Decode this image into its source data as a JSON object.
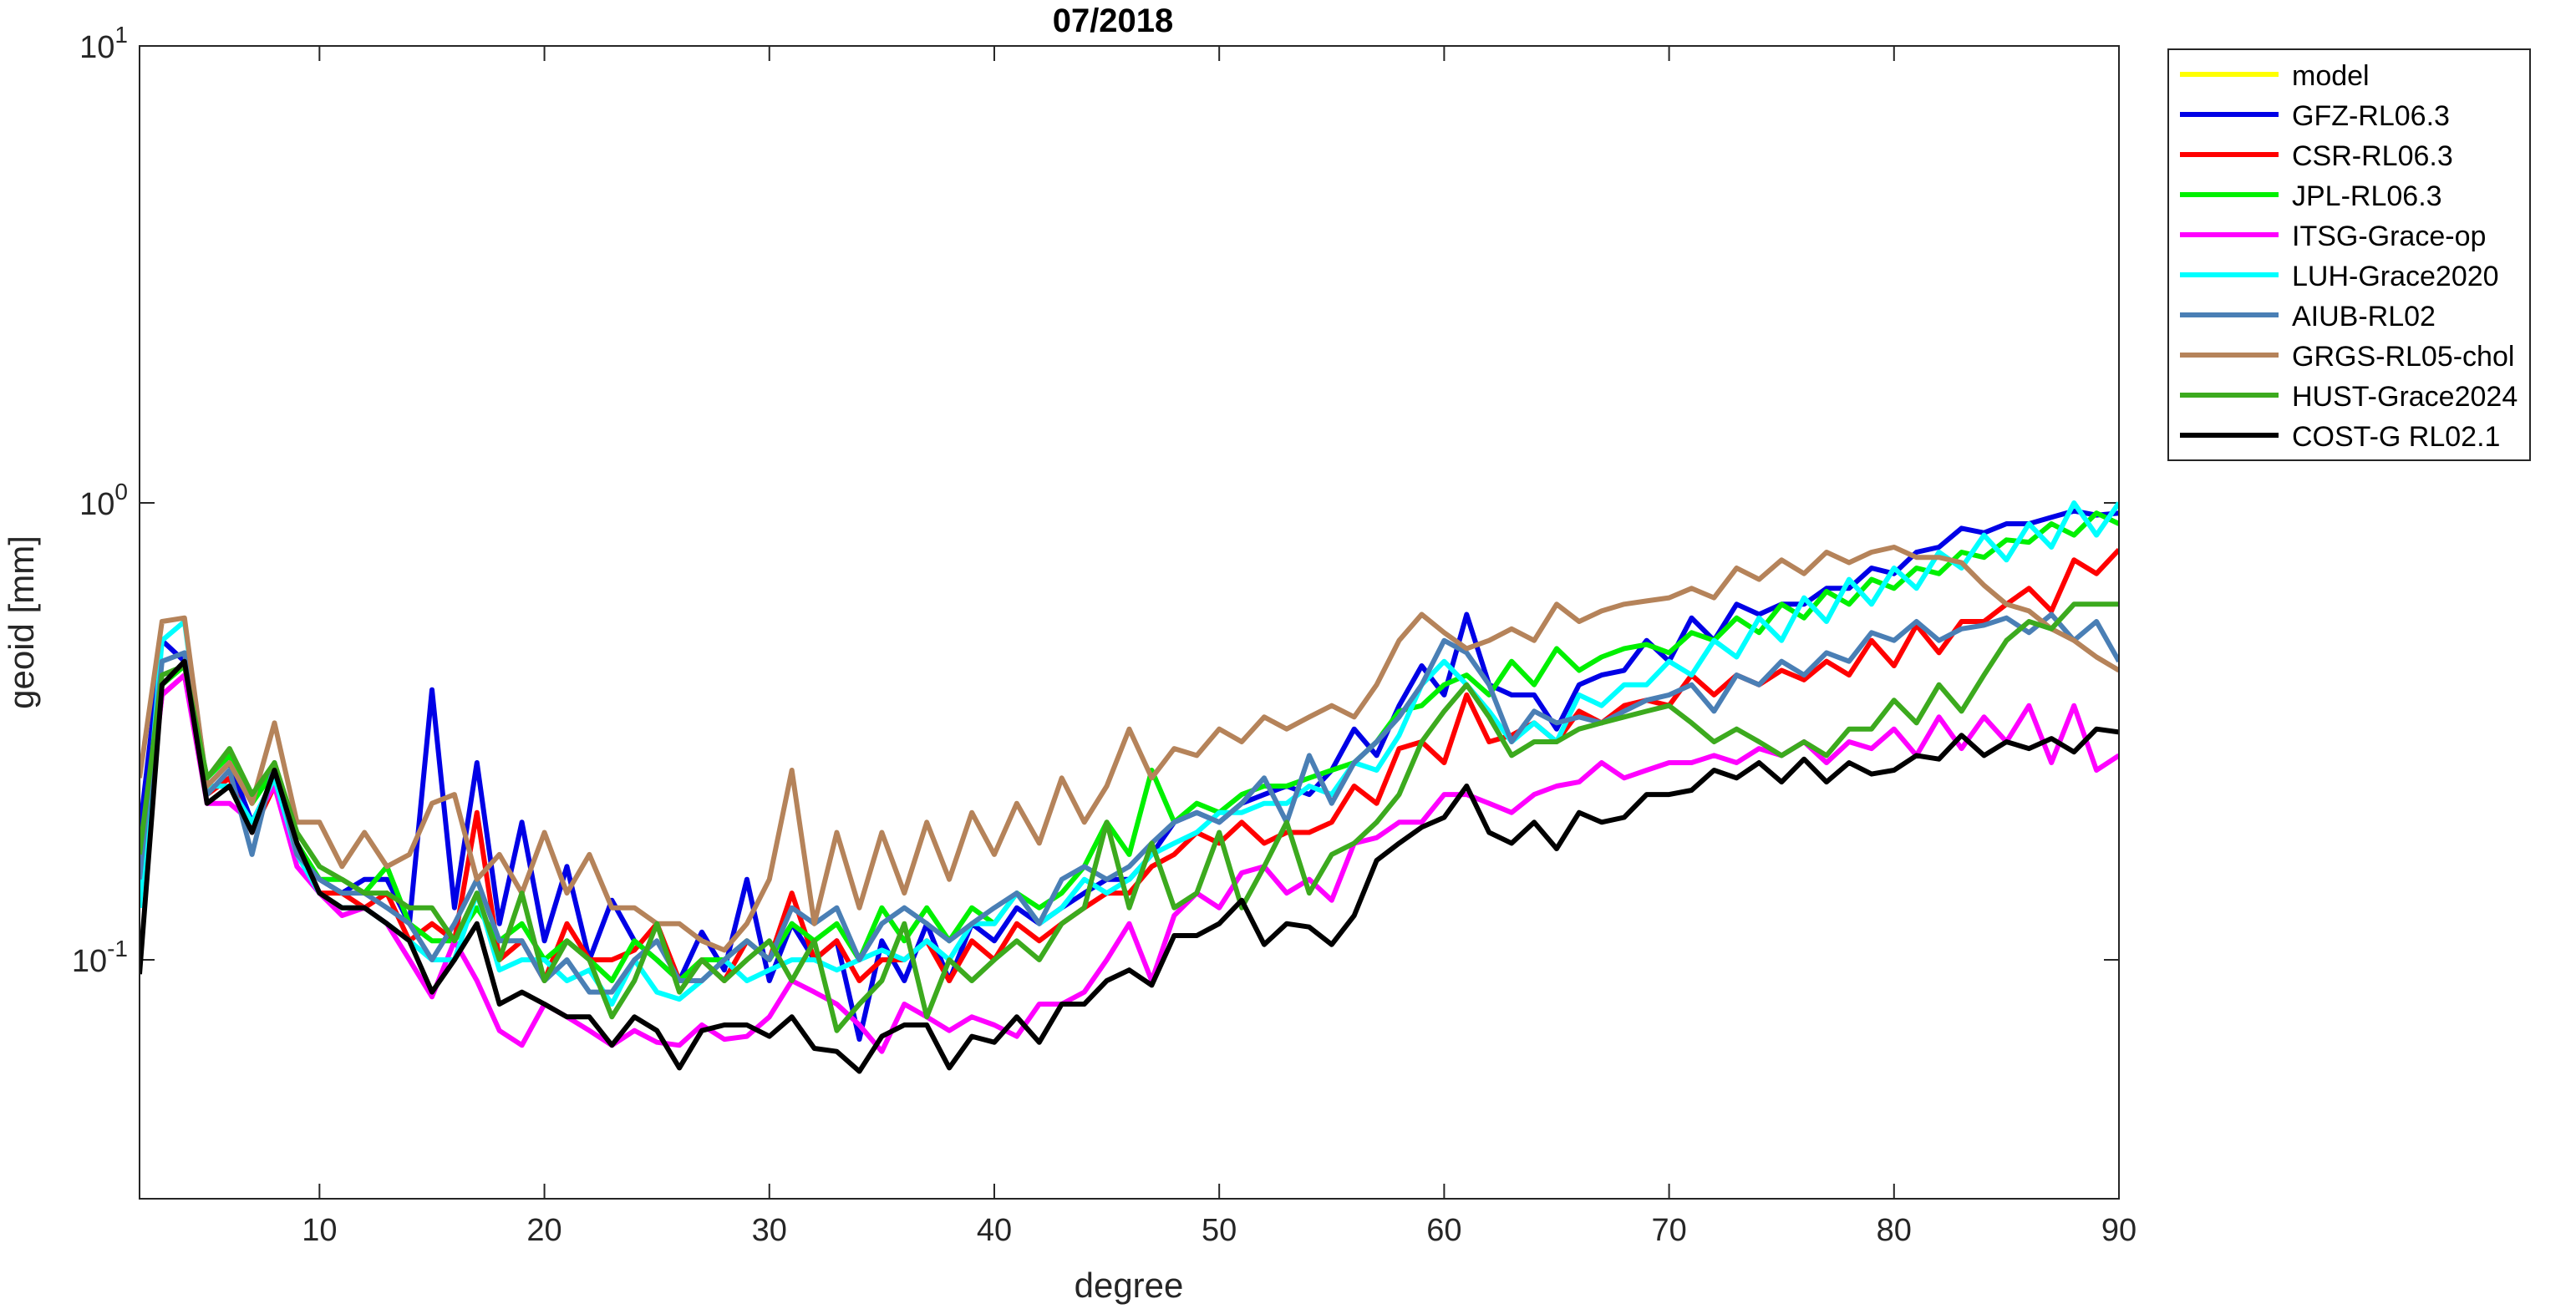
{
  "chart_data": {
    "type": "line",
    "title": "07/2018",
    "xlabel": "degree",
    "ylabel": "geoid [mm]",
    "log_y": true,
    "legend": "outside-northeast",
    "x": [
      2,
      3,
      4,
      5,
      6,
      7,
      8,
      9,
      10,
      11,
      12,
      13,
      14,
      15,
      16,
      17,
      18,
      19,
      20,
      21,
      22,
      23,
      24,
      25,
      26,
      27,
      28,
      29,
      30,
      31,
      32,
      33,
      34,
      35,
      36,
      37,
      38,
      39,
      40,
      41,
      42,
      43,
      44,
      45,
      46,
      47,
      48,
      49,
      50,
      51,
      52,
      53,
      54,
      55,
      56,
      57,
      58,
      59,
      60,
      61,
      62,
      63,
      64,
      65,
      66,
      67,
      68,
      69,
      70,
      71,
      72,
      73,
      74,
      75,
      76,
      77,
      78,
      79,
      80,
      81,
      82,
      83,
      84,
      85,
      86,
      87,
      88,
      89,
      90
    ],
    "xlim": [
      2,
      90
    ],
    "xticks": [
      10,
      20,
      30,
      40,
      50,
      60,
      70,
      80,
      90
    ],
    "ylim": [
      0.03,
      10
    ],
    "yticks": [
      {
        "value": 0.1,
        "label": "10^-1"
      },
      {
        "value": 1,
        "label": "10^0"
      },
      {
        "value": 10,
        "label": "10^1"
      }
    ],
    "series": [
      {
        "name": "model",
        "color": "#ffff00",
        "values": [
          null,
          null,
          null,
          null,
          null,
          null,
          null,
          null,
          null,
          null,
          null,
          null,
          null,
          null,
          null,
          null,
          null,
          null,
          null,
          null,
          null,
          null,
          null,
          null,
          null,
          null,
          null,
          null,
          null,
          null,
          null,
          null,
          null,
          null,
          null,
          null,
          null,
          null,
          null,
          null,
          null,
          null,
          null,
          null,
          null,
          null,
          null,
          null,
          null,
          null,
          null,
          null,
          null,
          null,
          null,
          null,
          null,
          null,
          null,
          null,
          null,
          null,
          null,
          null,
          null,
          null,
          null,
          null,
          null,
          null,
          null,
          null,
          null,
          null,
          null,
          null,
          null,
          null,
          null,
          null,
          null,
          null,
          null,
          null,
          null,
          null,
          null,
          null,
          null
        ]
      },
      {
        "name": "GFZ-RL06.3",
        "color": "#0000e6",
        "values": [
          0.19,
          0.5,
          0.45,
          0.24,
          0.27,
          0.2,
          0.25,
          0.17,
          0.15,
          0.14,
          0.15,
          0.15,
          0.12,
          0.39,
          0.13,
          0.27,
          0.12,
          0.2,
          0.11,
          0.16,
          0.1,
          0.135,
          0.11,
          0.1,
          0.09,
          0.115,
          0.095,
          0.15,
          0.09,
          0.12,
          0.1,
          0.11,
          0.067,
          0.11,
          0.09,
          0.12,
          0.09,
          0.12,
          0.11,
          0.13,
          0.12,
          0.13,
          0.14,
          0.15,
          0.15,
          0.17,
          0.2,
          0.21,
          0.2,
          0.22,
          0.23,
          0.24,
          0.23,
          0.26,
          0.32,
          0.28,
          0.36,
          0.44,
          0.38,
          0.57,
          0.4,
          0.38,
          0.38,
          0.32,
          0.4,
          0.42,
          0.43,
          0.5,
          0.45,
          0.56,
          0.5,
          0.6,
          0.57,
          0.6,
          0.6,
          0.65,
          0.65,
          0.72,
          0.7,
          0.78,
          0.8,
          0.88,
          0.86,
          0.9,
          0.9,
          0.93,
          0.96,
          0.94,
          0.95
        ]
      },
      {
        "name": "CSR-RL06.3",
        "color": "#ff0000",
        "values": [
          0.15,
          0.38,
          0.42,
          0.23,
          0.25,
          0.19,
          0.24,
          0.17,
          0.14,
          0.14,
          0.13,
          0.14,
          0.11,
          0.12,
          0.11,
          0.21,
          0.1,
          0.11,
          0.09,
          0.12,
          0.1,
          0.1,
          0.105,
          0.12,
          0.09,
          0.1,
          0.09,
          0.11,
          0.1,
          0.14,
          0.1,
          0.11,
          0.09,
          0.1,
          0.1,
          0.11,
          0.09,
          0.11,
          0.1,
          0.12,
          0.11,
          0.12,
          0.13,
          0.14,
          0.14,
          0.16,
          0.17,
          0.19,
          0.18,
          0.2,
          0.18,
          0.19,
          0.19,
          0.2,
          0.24,
          0.22,
          0.29,
          0.3,
          0.27,
          0.38,
          0.3,
          0.31,
          0.33,
          0.3,
          0.35,
          0.33,
          0.36,
          0.37,
          0.36,
          0.42,
          0.38,
          0.42,
          0.4,
          0.43,
          0.41,
          0.45,
          0.42,
          0.5,
          0.44,
          0.54,
          0.47,
          0.55,
          0.55,
          0.6,
          0.65,
          0.58,
          0.75,
          0.7,
          0.79
        ]
      },
      {
        "name": "JPL-RL06.3",
        "color": "#00f000",
        "values": [
          0.14,
          0.4,
          0.44,
          0.25,
          0.28,
          0.22,
          0.26,
          0.18,
          0.15,
          0.15,
          0.14,
          0.16,
          0.12,
          0.11,
          0.11,
          0.13,
          0.11,
          0.12,
          0.1,
          0.11,
          0.1,
          0.09,
          0.11,
          0.1,
          0.09,
          0.1,
          0.1,
          0.11,
          0.1,
          0.12,
          0.11,
          0.12,
          0.1,
          0.13,
          0.11,
          0.13,
          0.11,
          0.13,
          0.12,
          0.14,
          0.13,
          0.14,
          0.16,
          0.2,
          0.17,
          0.26,
          0.2,
          0.22,
          0.21,
          0.23,
          0.24,
          0.24,
          0.25,
          0.26,
          0.27,
          0.3,
          0.35,
          0.36,
          0.4,
          0.42,
          0.38,
          0.45,
          0.4,
          0.48,
          0.43,
          0.46,
          0.48,
          0.49,
          0.47,
          0.52,
          0.5,
          0.56,
          0.52,
          0.6,
          0.56,
          0.64,
          0.6,
          0.68,
          0.65,
          0.72,
          0.7,
          0.78,
          0.76,
          0.83,
          0.82,
          0.9,
          0.85,
          0.95,
          0.9
        ]
      },
      {
        "name": "ITSG-Grace-op",
        "color": "#ff00ff",
        "values": [
          0.14,
          0.38,
          0.42,
          0.22,
          0.22,
          0.2,
          0.24,
          0.16,
          0.14,
          0.125,
          0.13,
          0.12,
          0.1,
          0.083,
          0.11,
          0.09,
          0.07,
          0.065,
          0.08,
          0.075,
          0.07,
          0.065,
          0.07,
          0.066,
          0.065,
          0.072,
          0.067,
          0.068,
          0.075,
          0.09,
          0.085,
          0.08,
          0.072,
          0.063,
          0.08,
          0.075,
          0.07,
          0.075,
          0.072,
          0.068,
          0.08,
          0.08,
          0.085,
          0.1,
          0.12,
          0.09,
          0.125,
          0.14,
          0.13,
          0.155,
          0.16,
          0.14,
          0.15,
          0.135,
          0.18,
          0.185,
          0.2,
          0.2,
          0.23,
          0.23,
          0.22,
          0.21,
          0.23,
          0.24,
          0.245,
          0.27,
          0.25,
          0.26,
          0.27,
          0.27,
          0.28,
          0.27,
          0.29,
          0.28,
          0.3,
          0.27,
          0.3,
          0.29,
          0.32,
          0.28,
          0.34,
          0.29,
          0.34,
          0.3,
          0.36,
          0.27,
          0.36,
          0.26,
          0.28
        ]
      },
      {
        "name": "LUH-Grace2020",
        "color": "#00ffff",
        "values": [
          0.13,
          0.5,
          0.55,
          0.24,
          0.24,
          0.2,
          0.25,
          0.17,
          0.14,
          0.13,
          0.13,
          0.12,
          0.11,
          0.1,
          0.1,
          0.14,
          0.095,
          0.1,
          0.1,
          0.09,
          0.095,
          0.08,
          0.1,
          0.085,
          0.082,
          0.09,
          0.1,
          0.09,
          0.095,
          0.1,
          0.1,
          0.095,
          0.1,
          0.105,
          0.1,
          0.11,
          0.1,
          0.12,
          0.12,
          0.14,
          0.12,
          0.13,
          0.15,
          0.14,
          0.15,
          0.17,
          0.18,
          0.19,
          0.21,
          0.21,
          0.22,
          0.22,
          0.24,
          0.23,
          0.27,
          0.26,
          0.31,
          0.4,
          0.45,
          0.4,
          0.35,
          0.3,
          0.33,
          0.3,
          0.38,
          0.36,
          0.4,
          0.4,
          0.45,
          0.42,
          0.5,
          0.46,
          0.56,
          0.5,
          0.62,
          0.55,
          0.68,
          0.6,
          0.72,
          0.65,
          0.78,
          0.72,
          0.85,
          0.75,
          0.9,
          0.8,
          1.0,
          0.85,
          1.0
        ]
      },
      {
        "name": "AIUB-RL02",
        "color": "#4a7fb5",
        "values": [
          0.15,
          0.45,
          0.47,
          0.23,
          0.26,
          0.17,
          0.27,
          0.17,
          0.15,
          0.14,
          0.14,
          0.13,
          0.12,
          0.1,
          0.12,
          0.15,
          0.11,
          0.11,
          0.09,
          0.1,
          0.085,
          0.085,
          0.1,
          0.11,
          0.09,
          0.09,
          0.1,
          0.11,
          0.1,
          0.13,
          0.12,
          0.13,
          0.1,
          0.12,
          0.13,
          0.12,
          0.11,
          0.12,
          0.13,
          0.14,
          0.12,
          0.15,
          0.16,
          0.15,
          0.16,
          0.18,
          0.2,
          0.21,
          0.2,
          0.22,
          0.25,
          0.2,
          0.28,
          0.22,
          0.27,
          0.3,
          0.34,
          0.4,
          0.5,
          0.47,
          0.4,
          0.3,
          0.35,
          0.33,
          0.34,
          0.33,
          0.35,
          0.37,
          0.38,
          0.4,
          0.35,
          0.42,
          0.4,
          0.45,
          0.42,
          0.47,
          0.45,
          0.52,
          0.5,
          0.55,
          0.5,
          0.53,
          0.54,
          0.56,
          0.52,
          0.57,
          0.5,
          0.55,
          0.45
        ]
      },
      {
        "name": "GRGS-RL05-chol",
        "color": "#b5835a",
        "values": [
          0.25,
          0.55,
          0.56,
          0.24,
          0.27,
          0.22,
          0.33,
          0.2,
          0.2,
          0.16,
          0.19,
          0.16,
          0.17,
          0.22,
          0.23,
          0.15,
          0.17,
          0.14,
          0.19,
          0.14,
          0.17,
          0.13,
          0.13,
          0.12,
          0.12,
          0.11,
          0.105,
          0.12,
          0.15,
          0.26,
          0.12,
          0.19,
          0.13,
          0.19,
          0.14,
          0.2,
          0.15,
          0.21,
          0.17,
          0.22,
          0.18,
          0.25,
          0.2,
          0.24,
          0.32,
          0.25,
          0.29,
          0.28,
          0.32,
          0.3,
          0.34,
          0.32,
          0.34,
          0.36,
          0.34,
          0.4,
          0.5,
          0.57,
          0.52,
          0.48,
          0.5,
          0.53,
          0.5,
          0.6,
          0.55,
          0.58,
          0.6,
          0.61,
          0.62,
          0.65,
          0.62,
          0.72,
          0.68,
          0.75,
          0.7,
          0.78,
          0.74,
          0.78,
          0.8,
          0.76,
          0.76,
          0.74,
          0.66,
          0.6,
          0.58,
          0.53,
          0.5,
          0.46,
          0.43
        ]
      },
      {
        "name": "HUST-Grace2024",
        "color": "#3caa1e",
        "values": [
          0.17,
          0.42,
          0.44,
          0.25,
          0.29,
          0.23,
          0.27,
          0.19,
          0.16,
          0.15,
          0.14,
          0.14,
          0.13,
          0.13,
          0.11,
          0.14,
          0.1,
          0.14,
          0.09,
          0.11,
          0.1,
          0.075,
          0.09,
          0.12,
          0.085,
          0.1,
          0.09,
          0.1,
          0.11,
          0.09,
          0.11,
          0.07,
          0.08,
          0.09,
          0.12,
          0.075,
          0.1,
          0.09,
          0.1,
          0.11,
          0.1,
          0.12,
          0.13,
          0.2,
          0.13,
          0.18,
          0.13,
          0.14,
          0.19,
          0.13,
          0.16,
          0.2,
          0.14,
          0.17,
          0.18,
          0.2,
          0.23,
          0.3,
          0.35,
          0.4,
          0.34,
          0.28,
          0.3,
          0.3,
          0.32,
          0.33,
          0.34,
          0.35,
          0.36,
          0.33,
          0.3,
          0.32,
          0.3,
          0.28,
          0.3,
          0.28,
          0.32,
          0.32,
          0.37,
          0.33,
          0.4,
          0.35,
          0.42,
          0.5,
          0.55,
          0.53,
          0.6,
          0.6,
          0.6
        ]
      },
      {
        "name": "COST-G RL02.1",
        "color": "#000000",
        "values": [
          0.093,
          0.4,
          0.45,
          0.22,
          0.24,
          0.19,
          0.26,
          0.18,
          0.14,
          0.13,
          0.13,
          0.12,
          0.11,
          0.085,
          0.1,
          0.12,
          0.08,
          0.085,
          0.08,
          0.075,
          0.075,
          0.065,
          0.075,
          0.07,
          0.058,
          0.07,
          0.072,
          0.072,
          0.068,
          0.075,
          0.064,
          0.063,
          0.057,
          0.068,
          0.072,
          0.072,
          0.058,
          0.068,
          0.066,
          0.075,
          0.066,
          0.08,
          0.08,
          0.09,
          0.095,
          0.088,
          0.113,
          0.113,
          0.12,
          0.135,
          0.108,
          0.12,
          0.118,
          0.108,
          0.125,
          0.165,
          0.18,
          0.195,
          0.205,
          0.24,
          0.19,
          0.18,
          0.2,
          0.175,
          0.21,
          0.2,
          0.205,
          0.23,
          0.23,
          0.235,
          0.26,
          0.25,
          0.27,
          0.245,
          0.275,
          0.245,
          0.27,
          0.255,
          0.26,
          0.28,
          0.275,
          0.31,
          0.28,
          0.3,
          0.29,
          0.305,
          0.285,
          0.32,
          0.315
        ]
      }
    ]
  }
}
